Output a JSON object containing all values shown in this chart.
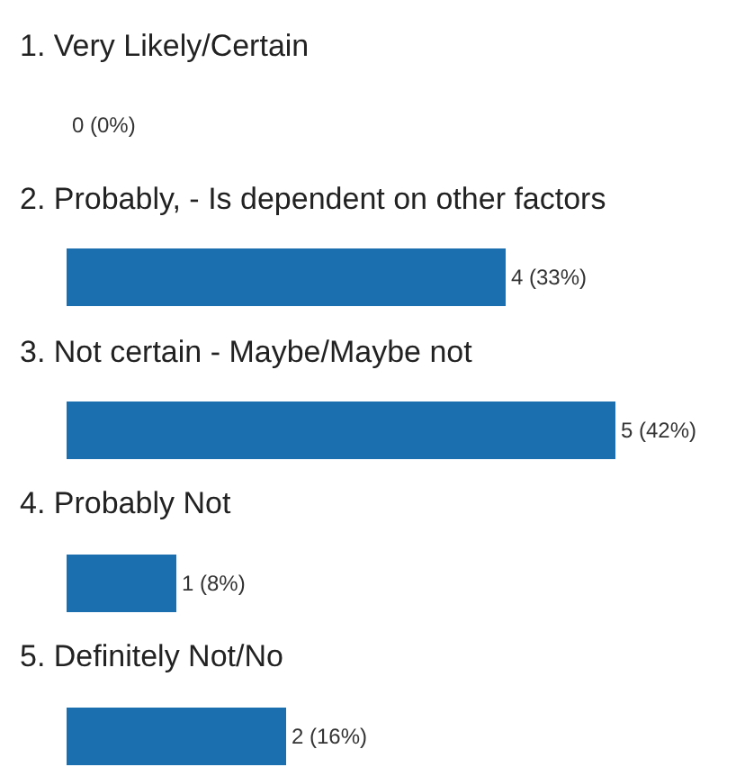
{
  "chart_data": {
    "type": "bar",
    "orientation": "horizontal",
    "categories": [
      "1. Very Likely/Certain",
      "2. Probably, - Is dependent on other factors",
      "3. Not certain - Maybe/Maybe not",
      "4. Probably Not",
      "5. Definitely Not/No"
    ],
    "values": [
      0,
      4,
      5,
      1,
      2
    ],
    "value_labels": [
      "0 (0%)",
      "4 (33%)",
      "5 (42%)",
      "1 (8%)",
      "2 (16%)"
    ],
    "color": "#1b6fae"
  }
}
